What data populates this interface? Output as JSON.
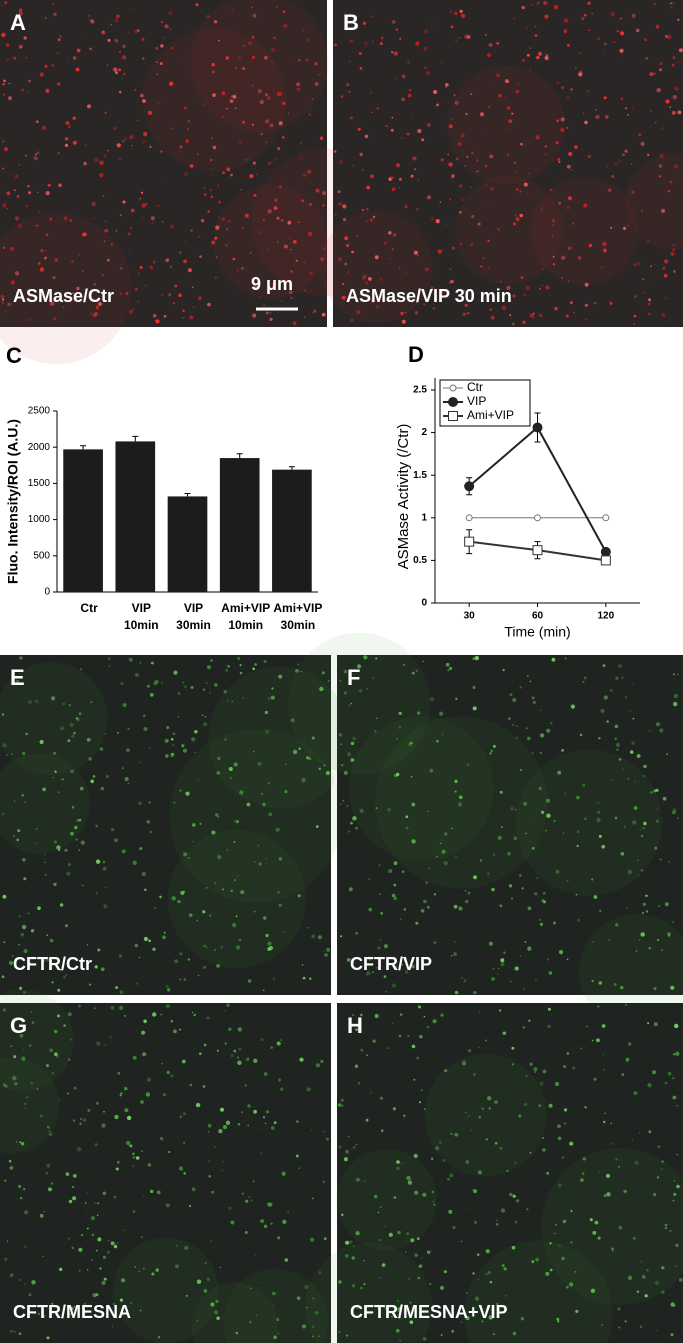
{
  "panels": [
    {
      "letter": "A",
      "caption": "ASMase/Ctr"
    },
    {
      "letter": "B",
      "caption": "ASMase/VIP 30 min"
    },
    {
      "letter": "E",
      "caption": "CFTR/Ctr"
    },
    {
      "letter": "F",
      "caption": "CFTR/VIP"
    },
    {
      "letter": "G",
      "caption": "CFTR/MESNA"
    },
    {
      "letter": "H",
      "caption": "CFTR/MESNA+VIP"
    }
  ],
  "scale_bar": "9 μm",
  "chart_data": [
    {
      "type": "bar",
      "panel": "C",
      "ylabel": "Fluo. Intensity/ROI (A.U.)",
      "categories": [
        [
          "Ctr"
        ],
        [
          "VIP",
          "10min"
        ],
        [
          "VIP",
          "30min"
        ],
        [
          "Ami+VIP",
          "10min"
        ],
        [
          "Ami+VIP",
          "30min"
        ]
      ],
      "values": [
        1970,
        2080,
        1320,
        1850,
        1690
      ],
      "errors": [
        50,
        70,
        40,
        60,
        40
      ],
      "color": "#1c1c1c",
      "ylim": [
        0,
        2500
      ],
      "yticks": [
        0,
        500,
        1000,
        1500,
        2000,
        2500
      ]
    },
    {
      "type": "line",
      "panel": "D",
      "xlabel": "Time (min)",
      "ylabel": "ASMase Activity (/Ctr)",
      "categories": [
        "30",
        "60",
        "120"
      ],
      "ylim": [
        0,
        2.5
      ],
      "yticks": [
        0,
        0.5,
        1,
        1.5,
        2,
        2.5
      ],
      "legend": "upper left",
      "series": [
        {
          "name": "Ctr",
          "color": "#777777",
          "marker": "circle-open",
          "values": [
            1,
            1,
            1
          ]
        },
        {
          "name": "VIP",
          "color": "#222222",
          "marker": "circle-filled",
          "values": [
            1.37,
            2.06,
            0.6
          ],
          "errors": [
            0.1,
            0.17,
            0.03
          ]
        },
        {
          "name": "Ami+VIP",
          "color": "#333333",
          "marker": "square-open",
          "values": [
            0.72,
            0.62,
            0.5
          ],
          "errors": [
            0.14,
            0.1,
            0.03
          ]
        }
      ]
    }
  ]
}
